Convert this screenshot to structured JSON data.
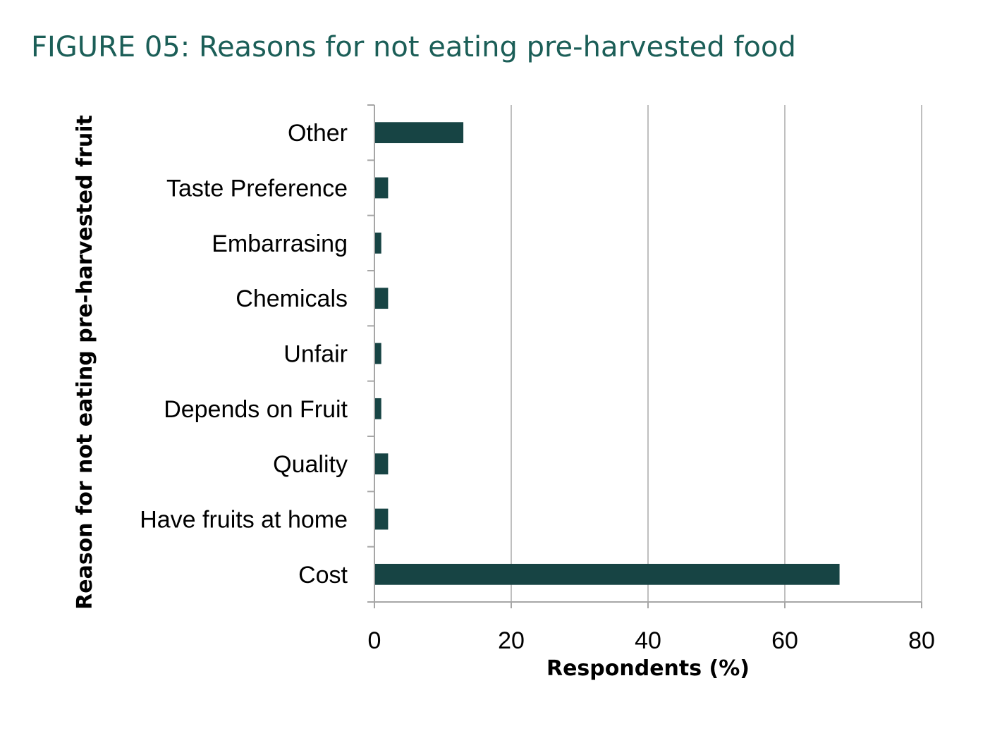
{
  "figure_title": "FIGURE 05: Reasons for not eating pre-harvested food",
  "chart_data": {
    "type": "bar",
    "orientation": "horizontal",
    "categories": [
      "Other",
      "Taste Preference",
      "Embarrasing",
      "Chemicals",
      "Unfair",
      "Depends on Fruit",
      "Quality",
      "Have fruits at home",
      "Cost"
    ],
    "values": [
      13,
      2,
      1,
      2,
      1,
      1,
      2,
      2,
      68
    ],
    "xlabel": "Respondents (%)",
    "ylabel": "Reason for not eating pre-harvested fruit",
    "xlim": [
      0,
      80
    ],
    "xticks": [
      "0",
      "20",
      "40",
      "60",
      "80"
    ],
    "grid": "vertical",
    "bar_color": "#174444",
    "legend": "none"
  }
}
